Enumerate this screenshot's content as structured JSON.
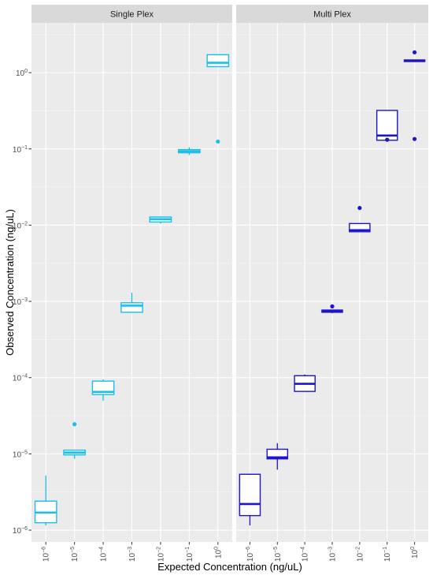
{
  "chart_data": {
    "type": "boxplot",
    "xlabel": "Expected Concentration (ng/uL)",
    "ylabel": "Observed Concentration (ng/uL)",
    "y_scale": "log10",
    "ylim": [
      7e-07,
      4.5
    ],
    "categories": [
      "10^-6",
      "10^-5",
      "10^-4",
      "10^-3",
      "10^-2",
      "10^-1",
      "10^0"
    ],
    "tick_labels": [
      {
        "base": "10",
        "exp": "−6"
      },
      {
        "base": "10",
        "exp": "−5"
      },
      {
        "base": "10",
        "exp": "−4"
      },
      {
        "base": "10",
        "exp": "−3"
      },
      {
        "base": "10",
        "exp": "−2"
      },
      {
        "base": "10",
        "exp": "−1"
      },
      {
        "base": "10",
        "exp": "0"
      }
    ],
    "y_ticks": [
      {
        "value": 1e-06,
        "base": "10",
        "exp": "−6"
      },
      {
        "value": 1e-05,
        "base": "10",
        "exp": "−5"
      },
      {
        "value": 0.0001,
        "base": "10",
        "exp": "−4"
      },
      {
        "value": 0.001,
        "base": "10",
        "exp": "−3"
      },
      {
        "value": 0.01,
        "base": "10",
        "exp": "−2"
      },
      {
        "value": 0.1,
        "base": "10",
        "exp": "−1"
      },
      {
        "value": 1,
        "base": "10",
        "exp": "0"
      }
    ],
    "grid": true,
    "legend": "none",
    "panels": [
      {
        "label": "Single Plex",
        "color": "#1ABFEB",
        "boxes": [
          {
            "min": 1.15e-06,
            "q1": 1.25e-06,
            "median": 1.7e-06,
            "q3": 2.4e-06,
            "max": 5.2e-06,
            "outliers": []
          },
          {
            "min": 8.6e-06,
            "q1": 9.7e-06,
            "median": 1.04e-05,
            "q3": 1.12e-05,
            "max": 1.12e-05,
            "outliers": [
              2.45e-05
            ]
          },
          {
            "min": 5e-05,
            "q1": 6e-05,
            "median": 6.5e-05,
            "q3": 9e-05,
            "max": 9.5e-05,
            "outliers": []
          },
          {
            "min": 0.00072,
            "q1": 0.00072,
            "median": 0.00088,
            "q3": 0.00096,
            "max": 0.0013,
            "outliers": []
          },
          {
            "min": 0.0105,
            "q1": 0.011,
            "median": 0.012,
            "q3": 0.0128,
            "max": 0.013,
            "outliers": []
          },
          {
            "min": 0.083,
            "q1": 0.089,
            "median": 0.093,
            "q3": 0.098,
            "max": 0.105,
            "outliers": []
          },
          {
            "min": 1.2,
            "q1": 1.2,
            "median": 1.35,
            "q3": 1.72,
            "max": 1.72,
            "outliers": [
              0.125
            ]
          }
        ]
      },
      {
        "label": "Multi Plex",
        "color": "#1E14C8",
        "boxes": [
          {
            "min": 1.15e-06,
            "q1": 1.55e-06,
            "median": 2.2e-06,
            "q3": 5.4e-06,
            "max": 5.4e-06,
            "outliers": []
          },
          {
            "min": 6.2e-06,
            "q1": 8.6e-06,
            "median": 9e-06,
            "q3": 1.15e-05,
            "max": 1.38e-05,
            "outliers": []
          },
          {
            "min": 6.6e-05,
            "q1": 6.6e-05,
            "median": 8.3e-05,
            "q3": 0.000106,
            "max": 0.00011,
            "outliers": []
          },
          {
            "min": 0.0007,
            "q1": 0.00072,
            "median": 0.00074,
            "q3": 0.00077,
            "max": 0.00077,
            "outliers": [
              0.00086
            ]
          },
          {
            "min": 0.0082,
            "q1": 0.0082,
            "median": 0.0086,
            "q3": 0.0105,
            "max": 0.0105,
            "outliers": [
              0.0168
            ]
          },
          {
            "min": 0.125,
            "q1": 0.13,
            "median": 0.15,
            "q3": 0.32,
            "max": 0.32,
            "outliers": [
              0.132
            ]
          },
          {
            "min": 1.38,
            "q1": 1.4,
            "median": 1.43,
            "q3": 1.47,
            "max": 1.47,
            "outliers": [
              1.85,
              0.135
            ]
          }
        ]
      }
    ]
  }
}
